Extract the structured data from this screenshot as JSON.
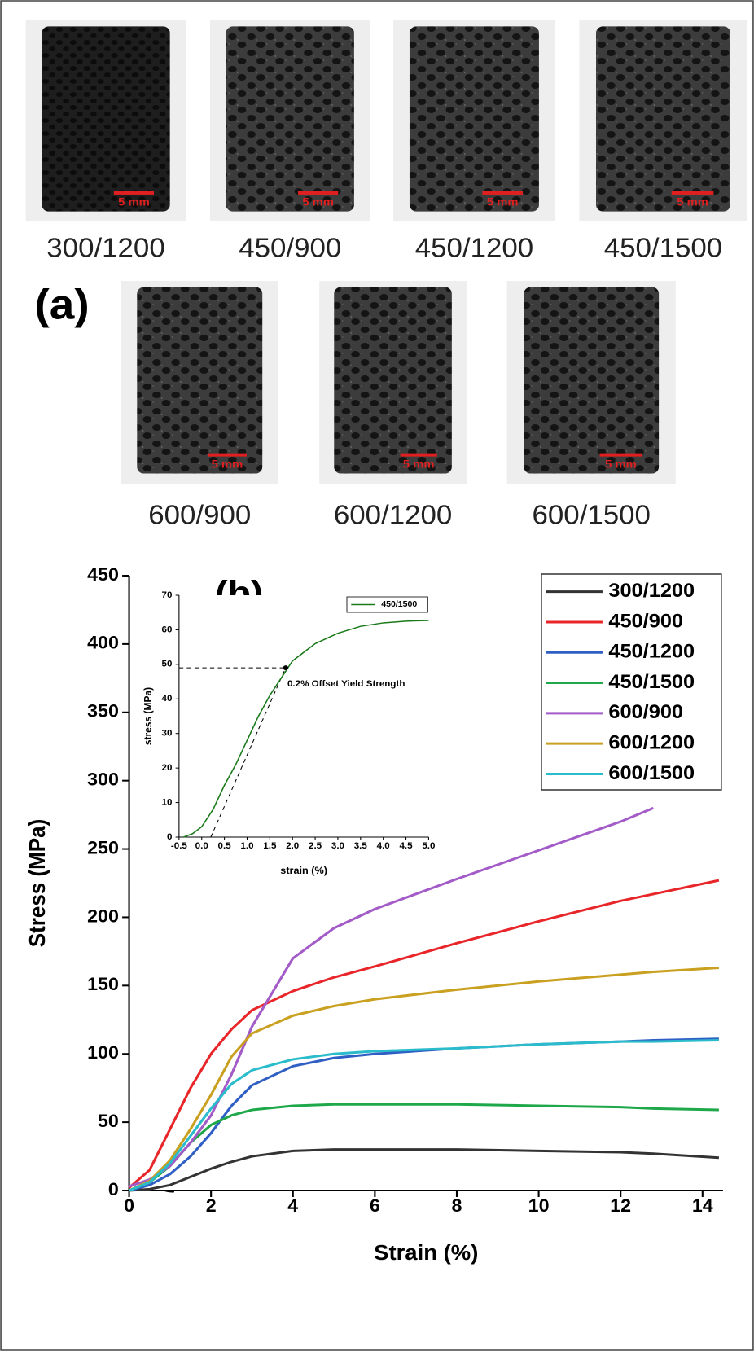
{
  "panel_a": {
    "label": "(a)",
    "samples": [
      {
        "label": "300/1200",
        "scale_bar": "5 mm"
      },
      {
        "label": "450/900",
        "scale_bar": "5 mm"
      },
      {
        "label": "450/1200",
        "scale_bar": "5 mm"
      },
      {
        "label": "450/1500",
        "scale_bar": "5 mm"
      },
      {
        "label": "600/900",
        "scale_bar": "5 mm"
      },
      {
        "label": "600/1200",
        "scale_bar": "5 mm"
      },
      {
        "label": "600/1500",
        "scale_bar": "5 mm"
      }
    ]
  },
  "chart_data": [
    {
      "type": "line",
      "panel_label": "(b)",
      "xlabel": "Strain (%)",
      "ylabel": "Stress (MPa)",
      "xlim": [
        0,
        14.5
      ],
      "ylim": [
        0,
        450
      ],
      "xticks": [
        0,
        2,
        4,
        6,
        8,
        10,
        12,
        14
      ],
      "yticks": [
        0,
        50,
        100,
        150,
        200,
        250,
        300,
        350,
        400,
        450
      ],
      "grid": false,
      "legend": "upper right",
      "x": [
        0,
        0.5,
        1,
        1.5,
        2,
        2.5,
        3,
        4,
        5,
        6,
        8,
        10,
        12,
        12.8,
        14.4
      ],
      "series": [
        {
          "name": "300/1200",
          "color": "#333333",
          "values": [
            0,
            1,
            4,
            10,
            16,
            21,
            25,
            29,
            30,
            30,
            30,
            29,
            28,
            27,
            24
          ]
        },
        {
          "name": "450/900",
          "color": "#e8262a",
          "values": [
            2,
            15,
            45,
            75,
            100,
            118,
            132,
            146,
            156,
            164,
            181,
            197,
            212,
            217,
            227
          ]
        },
        {
          "name": "450/1200",
          "color": "#2f5fc4",
          "values": [
            0,
            4,
            12,
            25,
            42,
            62,
            77,
            91,
            97,
            100,
            104,
            107,
            109,
            110,
            111
          ]
        },
        {
          "name": "450/1500",
          "color": "#1ea84a",
          "values": [
            0,
            6,
            18,
            35,
            48,
            55,
            59,
            62,
            63,
            63,
            63,
            62,
            61,
            60,
            59
          ]
        },
        {
          "name": "600/900",
          "color": "#a35bc8",
          "values": [
            3,
            8,
            18,
            35,
            55,
            85,
            120,
            170,
            192,
            206,
            228,
            249,
            270,
            280,
            null
          ]
        },
        {
          "name": "600/1200",
          "color": "#c9a020",
          "values": [
            0,
            7,
            22,
            45,
            70,
            98,
            115,
            128,
            135,
            140,
            147,
            153,
            158,
            160,
            163
          ]
        },
        {
          "name": "600/1500",
          "color": "#2bbccc",
          "values": [
            0,
            6,
            20,
            40,
            60,
            78,
            88,
            96,
            100,
            102,
            104,
            107,
            109,
            109,
            110
          ]
        }
      ]
    },
    {
      "type": "line",
      "xlabel": "strain (%)",
      "ylabel": "stress (MPa)",
      "xlim": [
        -0.5,
        5.0
      ],
      "ylim": [
        0,
        70
      ],
      "xticks": [
        -0.5,
        {
          "value": 0,
          "label": "0.0"
        },
        0.5,
        {
          "value": 1,
          "label": "1.0"
        },
        1.5,
        {
          "value": 2,
          "label": "2.0"
        },
        2.5,
        {
          "value": 3,
          "label": "3.0"
        },
        3.5,
        {
          "value": 4,
          "label": "4.0"
        },
        4.5,
        {
          "value": 5,
          "label": "5.0"
        }
      ],
      "yticks": [
        0,
        10,
        20,
        30,
        40,
        50,
        60,
        70
      ],
      "grid": false,
      "legend": "upper right",
      "x": [
        -0.4,
        -0.2,
        0,
        0.25,
        0.5,
        0.75,
        1,
        1.25,
        1.5,
        1.75,
        2,
        2.5,
        3,
        3.5,
        4,
        4.5,
        5
      ],
      "series": [
        {
          "name": "450/1500",
          "color": "#1a7a1a",
          "values": [
            0,
            1,
            3,
            8,
            15,
            21,
            28,
            35,
            41,
            46,
            51,
            56,
            59,
            61,
            62,
            62.5,
            62.7
          ]
        }
      ],
      "annotation": {
        "text": "0.2% Offset Yield Strength",
        "offset": 0.2,
        "x": 1.85,
        "y": 49
      }
    }
  ]
}
